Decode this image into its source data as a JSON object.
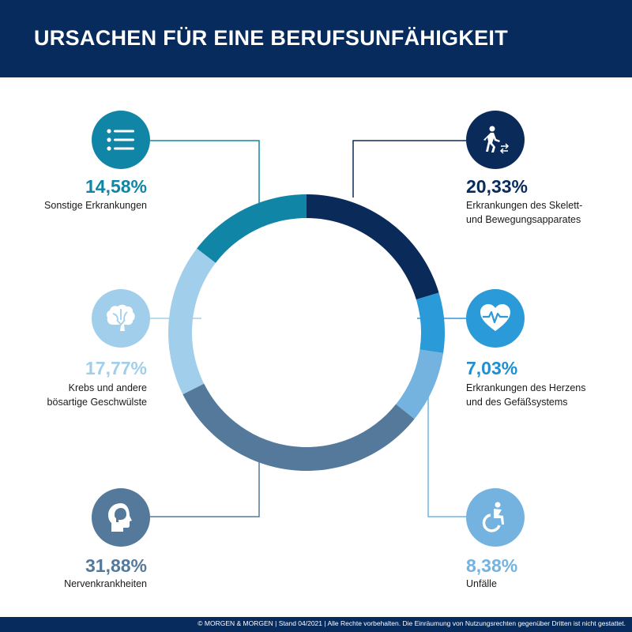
{
  "header": {
    "title": "URSACHEN FÜR EINE BERUFSUNFÄHIGKEIT"
  },
  "footer": {
    "text": "© MORGEN & MORGEN | Stand 04/2021 | Alle Rechte vorbehalten. Die Einräumung von Nutzungsrechten gegenüber Dritten ist nicht gestattet."
  },
  "chart_data": {
    "type": "pie",
    "style": "donut",
    "title": "URSACHEN FÜR EINE BERUFSUNFÄHIGKEIT",
    "unit": "%",
    "slices": [
      {
        "value": 20.33,
        "value_label": "20,33%",
        "label_lines": [
          "Erkrankungen des Skelett-",
          "und Bewegungsapparates"
        ],
        "color": "#0a2a5a",
        "icon": "walking-person-icon"
      },
      {
        "value": 7.03,
        "value_label": "7,03%",
        "label_lines": [
          "Erkrankungen des Herzens",
          "und des Gefäßsystems"
        ],
        "color": "#2b9ad8",
        "icon": "heart-pulse-icon"
      },
      {
        "value": 8.38,
        "value_label": "8,38%",
        "label_lines": [
          "Unfälle"
        ],
        "color": "#74b3e0",
        "icon": "wheelchair-icon"
      },
      {
        "value": 31.88,
        "value_label": "31,88%",
        "label_lines": [
          "Nervenkrankheiten"
        ],
        "color": "#54799b",
        "icon": "head-brain-icon"
      },
      {
        "value": 17.77,
        "value_label": "17,77%",
        "label_lines": [
          "Krebs und andere",
          "bösartige Geschwülste"
        ],
        "color": "#a1cfeb",
        "icon": "brain-icon"
      },
      {
        "value": 14.58,
        "value_label": "14,58%",
        "label_lines": [
          "Sonstige Erkrankungen"
        ],
        "color": "#1085a6",
        "icon": "list-icon"
      }
    ],
    "value_label_colors": [
      "#062b5c",
      "#1e8fd0",
      "#74b3e0",
      "#54799b",
      "#a1cfeb",
      "#1085a6"
    ]
  }
}
